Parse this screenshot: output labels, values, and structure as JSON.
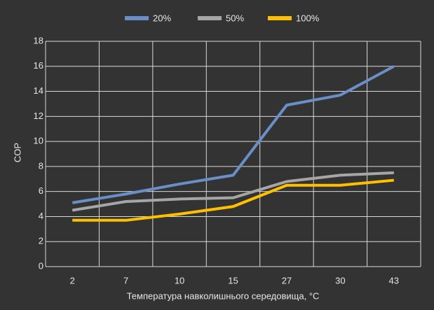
{
  "chart_data": {
    "type": "line",
    "categories": [
      "2",
      "7",
      "10",
      "15",
      "27",
      "30",
      "43"
    ],
    "series": [
      {
        "name": "20%",
        "color": "#6a8fc7",
        "values": [
          5.1,
          5.8,
          6.6,
          7.3,
          12.9,
          13.7,
          16.0
        ]
      },
      {
        "name": "50%",
        "color": "#a6a6a6",
        "values": [
          4.5,
          5.2,
          5.4,
          5.5,
          6.8,
          7.3,
          7.5
        ]
      },
      {
        "name": "100%",
        "color": "#ffc000",
        "values": [
          3.7,
          3.7,
          4.2,
          4.8,
          6.5,
          6.5,
          6.9
        ]
      }
    ],
    "x_label": "Температура навколишнього середовища, °C",
    "y_label": "COP",
    "ylim": [
      0,
      18
    ],
    "yticks": [
      0,
      2,
      4,
      6,
      8,
      10,
      12,
      14,
      16,
      18
    ],
    "grid": true,
    "legend": "top"
  }
}
